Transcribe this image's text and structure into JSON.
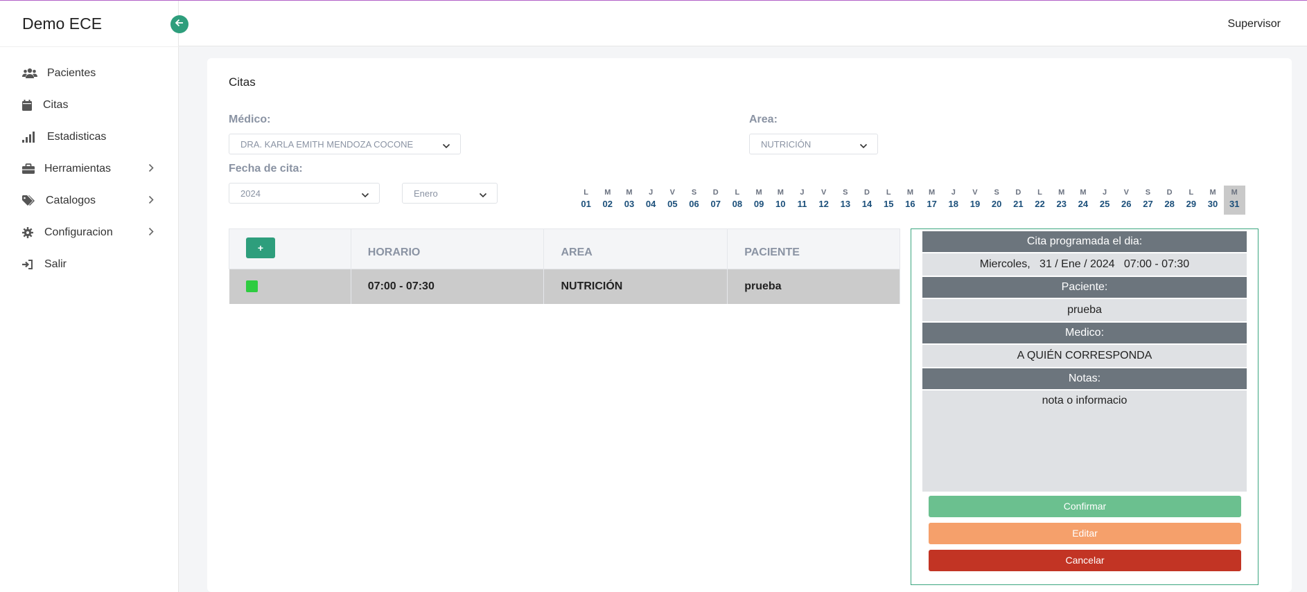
{
  "app": {
    "brand": "Demo ECE"
  },
  "header": {
    "user": "Supervisor"
  },
  "sidebar": {
    "items": [
      {
        "label": "Pacientes",
        "icon": "users-icon"
      },
      {
        "label": "Citas",
        "icon": "calendar-icon"
      },
      {
        "label": "Estadisticas",
        "icon": "signal-bars-icon"
      },
      {
        "label": "Herramientas",
        "icon": "toolbox-icon"
      },
      {
        "label": "Catalogos",
        "icon": "tags-icon"
      },
      {
        "label": "Configuracion",
        "icon": "gear-icon"
      },
      {
        "label": "Salir",
        "icon": "sign-out-icon"
      }
    ]
  },
  "page": {
    "title": "Citas",
    "medico_label": "Médico:",
    "medico_value": "DRA. KARLA EMITH MENDOZA COCONE",
    "area_label": "Area:",
    "area_value": "NUTRICIÓN",
    "fecha_label": "Fecha de cita:",
    "year_value": "2024",
    "month_value": "Enero"
  },
  "days": [
    {
      "l": "L",
      "n": "01"
    },
    {
      "l": "M",
      "n": "02"
    },
    {
      "l": "M",
      "n": "03"
    },
    {
      "l": "J",
      "n": "04"
    },
    {
      "l": "V",
      "n": "05"
    },
    {
      "l": "S",
      "n": "06"
    },
    {
      "l": "D",
      "n": "07"
    },
    {
      "l": "L",
      "n": "08"
    },
    {
      "l": "M",
      "n": "09"
    },
    {
      "l": "M",
      "n": "10"
    },
    {
      "l": "J",
      "n": "11"
    },
    {
      "l": "V",
      "n": "12"
    },
    {
      "l": "S",
      "n": "13"
    },
    {
      "l": "D",
      "n": "14"
    },
    {
      "l": "L",
      "n": "15"
    },
    {
      "l": "M",
      "n": "16"
    },
    {
      "l": "M",
      "n": "17"
    },
    {
      "l": "J",
      "n": "18"
    },
    {
      "l": "V",
      "n": "19"
    },
    {
      "l": "S",
      "n": "20"
    },
    {
      "l": "D",
      "n": "21"
    },
    {
      "l": "L",
      "n": "22"
    },
    {
      "l": "M",
      "n": "23"
    },
    {
      "l": "M",
      "n": "24"
    },
    {
      "l": "J",
      "n": "25"
    },
    {
      "l": "V",
      "n": "26"
    },
    {
      "l": "S",
      "n": "27"
    },
    {
      "l": "D",
      "n": "28"
    },
    {
      "l": "L",
      "n": "29"
    },
    {
      "l": "M",
      "n": "30"
    },
    {
      "l": "M",
      "n": "31",
      "active": true
    }
  ],
  "table": {
    "add_label": "+",
    "headers": {
      "horario": "HORARIO",
      "area": "AREA",
      "paciente": "PACIENTE"
    },
    "rows": [
      {
        "status_color": "#2ecc40",
        "horario": "07:00 - 07:30",
        "area": "NUTRICIÓN",
        "paciente": "prueba"
      }
    ]
  },
  "detail": {
    "heading_fecha": "Cita programada el dia:",
    "fecha_value": "Miercoles,   31 / Ene / 2024   07:00 - 07:30",
    "heading_paciente": "Paciente:",
    "paciente_value": "prueba",
    "heading_medico": "Medico:",
    "medico_value": "A QUIÉN CORRESPONDA",
    "heading_notas": "Notas:",
    "notas_value": "nota o informacio",
    "confirm_label": "Confirmar",
    "edit_label": "Editar",
    "cancel_label": "Cancelar"
  },
  "colors": {
    "accent": "#2e9e7c",
    "confirm": "#6bc08f",
    "edit": "#f5a06b",
    "cancel": "#c23424"
  }
}
